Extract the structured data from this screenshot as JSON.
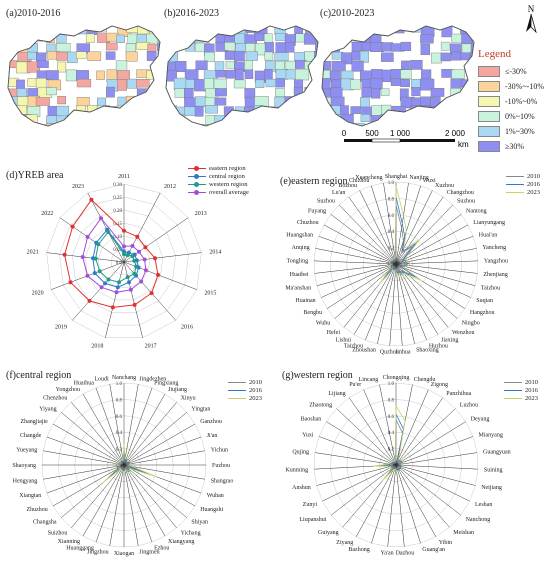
{
  "maps": [
    {
      "label": "(a)2010-2016"
    },
    {
      "label": "(b)2016-2023"
    },
    {
      "label": "(c)2010-2023"
    }
  ],
  "legend": {
    "title": "Legend",
    "items": [
      {
        "label": "≤-30%",
        "color": "#f4a6a0"
      },
      {
        "label": "-30%~-10%",
        "color": "#fcd39a"
      },
      {
        "label": "-10%~0%",
        "color": "#f5f7b0"
      },
      {
        "label": "0%~10%",
        "color": "#c9f3dc"
      },
      {
        "label": "1%~30%",
        "color": "#a9d8f4"
      },
      {
        "label": "≥30%",
        "color": "#8e8ff0"
      }
    ]
  },
  "scale": {
    "ticks": [
      "0",
      "500",
      "1 000",
      "2 000"
    ],
    "unit": "km"
  },
  "north": {
    "label": "N"
  },
  "chart_data": [
    {
      "type": "radar",
      "title": "(d)YREB area",
      "axes": [
        "2011",
        "2012",
        "2013",
        "2014",
        "2015",
        "2016",
        "2017",
        "2018",
        "2019",
        "2020",
        "2021",
        "2022",
        "2023"
      ],
      "rticks": [
        "0.30",
        "0.25",
        "0.20",
        "0.15",
        "0.10",
        "0.05",
        "0.0"
      ],
      "rlim": [
        0,
        0.3
      ],
      "series": [
        {
          "name": "eastern region",
          "color": "#e03030",
          "values": [
            0.12,
            0.11,
            0.1,
            0.12,
            0.14,
            0.16,
            0.17,
            0.18,
            0.2,
            0.22,
            0.23,
            0.24,
            0.27
          ]
        },
        {
          "name": "central region",
          "color": "#2f7ac8",
          "values": [
            0.04,
            0.04,
            0.05,
            0.05,
            0.06,
            0.07,
            0.08,
            0.1,
            0.11,
            0.12,
            0.12,
            0.13,
            0.14
          ]
        },
        {
          "name": "western region",
          "color": "#1e9b8a",
          "values": [
            0.03,
            0.03,
            0.04,
            0.04,
            0.05,
            0.06,
            0.06,
            0.08,
            0.09,
            0.1,
            0.11,
            0.12,
            0.13
          ]
        },
        {
          "name": "overall average",
          "color": "#a050d8",
          "values": [
            0.06,
            0.07,
            0.07,
            0.08,
            0.09,
            0.1,
            0.11,
            0.12,
            0.13,
            0.15,
            0.16,
            0.17,
            0.19
          ]
        }
      ]
    },
    {
      "type": "radar",
      "title": "(e)eastern region",
      "axes": [
        "Shanghai",
        "Nanjing",
        "Wuxi",
        "Xuzhou",
        "Changzhou",
        "Suzhou",
        "Nantong",
        "Lianyungang",
        "Huai'an",
        "Yancheng",
        "Yangzhou",
        "Zhenjiang",
        "Taizhou",
        "Suqian",
        "Hangzhou",
        "Ningbo",
        "Wenzhou",
        "Jiaxing",
        "Huzhou",
        "Shaoxing",
        "Jinhua",
        "Quzhou",
        "Zhoushan",
        "Taizhou",
        "Lishui",
        "Hefei",
        "Wuhu",
        "Bengbu",
        "Huainan",
        "Ma'anshan",
        "Huaibei",
        "Tongling",
        "Anqing",
        "Huangshan",
        "Chuzhou",
        "Fuyang",
        "Suzhou",
        "Lu'an",
        "Bozhou",
        "Chizhou",
        "Xuancheng"
      ],
      "rticks": [
        "1.0",
        "0.8",
        "0.6",
        "0.4",
        "0.2",
        "0.0"
      ],
      "rlim": [
        0,
        1
      ],
      "series": [
        {
          "name": "2010",
          "color": "#888888",
          "values": [
            0.72,
            0.45,
            0.3,
            0.15,
            0.2,
            0.3,
            0.12,
            0.08,
            0.1,
            0.1,
            0.12,
            0.1,
            0.08,
            0.06,
            0.25,
            0.15,
            0.1,
            0.12,
            0.08,
            0.1,
            0.08,
            0.05,
            0.06,
            0.05,
            0.05,
            0.2,
            0.08,
            0.05,
            0.05,
            0.06,
            0.04,
            0.05,
            0.05,
            0.05,
            0.05,
            0.04,
            0.04,
            0.04,
            0.04,
            0.04,
            0.04
          ]
        },
        {
          "name": "2016",
          "color": "#2f7ac8",
          "values": [
            0.82,
            0.5,
            0.35,
            0.18,
            0.22,
            0.35,
            0.15,
            0.1,
            0.12,
            0.12,
            0.15,
            0.12,
            0.1,
            0.07,
            0.3,
            0.18,
            0.12,
            0.14,
            0.1,
            0.12,
            0.1,
            0.06,
            0.07,
            0.06,
            0.06,
            0.25,
            0.1,
            0.06,
            0.06,
            0.07,
            0.05,
            0.06,
            0.06,
            0.06,
            0.06,
            0.05,
            0.05,
            0.05,
            0.05,
            0.05,
            0.05
          ]
        },
        {
          "name": "2023",
          "color": "#c8d070",
          "values": [
            0.95,
            0.6,
            0.42,
            0.22,
            0.26,
            0.42,
            0.18,
            0.12,
            0.15,
            0.14,
            0.18,
            0.15,
            0.12,
            0.09,
            0.38,
            0.22,
            0.15,
            0.17,
            0.12,
            0.15,
            0.12,
            0.08,
            0.09,
            0.08,
            0.08,
            0.32,
            0.12,
            0.08,
            0.08,
            0.09,
            0.06,
            0.08,
            0.08,
            0.08,
            0.08,
            0.07,
            0.07,
            0.07,
            0.07,
            0.07,
            0.07
          ]
        }
      ]
    },
    {
      "type": "radar",
      "title": "(f)central region",
      "axes": [
        "Nanchang",
        "Jingdezhen",
        "Pingxiang",
        "Jiujiang",
        "Xinyu",
        "Yingtan",
        "Ganzhou",
        "Ji'an",
        "Yichun",
        "Fuzhou",
        "Shangrao",
        "Wuhan",
        "Huangshi",
        "Shiyan",
        "Yichang",
        "Xiangyang",
        "Ezhou",
        "Jingmen",
        "Xiaogan",
        "Jingzhou",
        "Huanggang",
        "Xianning",
        "Suizhou",
        "Changsha",
        "Zhuzhou",
        "Xiangtan",
        "Hengyang",
        "Shaoyang",
        "Yueyang",
        "Changde",
        "Zhangjiajie",
        "Yiyang",
        "Chenzhou",
        "Yongzhou",
        "Huaihua",
        "Loudi"
      ],
      "rticks": [
        "1.0",
        "0.8",
        "0.6",
        "0.4",
        "0.2",
        "0.0"
      ],
      "rlim": [
        0,
        1
      ],
      "series": [
        {
          "name": "2010",
          "color": "#888888",
          "values": [
            0.15,
            0.05,
            0.05,
            0.06,
            0.04,
            0.04,
            0.06,
            0.05,
            0.05,
            0.04,
            0.06,
            0.28,
            0.06,
            0.05,
            0.08,
            0.07,
            0.04,
            0.05,
            0.05,
            0.05,
            0.05,
            0.04,
            0.04,
            0.2,
            0.07,
            0.06,
            0.06,
            0.04,
            0.06,
            0.05,
            0.03,
            0.04,
            0.05,
            0.04,
            0.04,
            0.04
          ]
        },
        {
          "name": "2016",
          "color": "#2f7ac8",
          "values": [
            0.2,
            0.06,
            0.06,
            0.08,
            0.05,
            0.05,
            0.08,
            0.06,
            0.06,
            0.05,
            0.08,
            0.35,
            0.07,
            0.06,
            0.1,
            0.09,
            0.05,
            0.06,
            0.06,
            0.06,
            0.06,
            0.05,
            0.05,
            0.26,
            0.09,
            0.08,
            0.08,
            0.05,
            0.08,
            0.06,
            0.04,
            0.05,
            0.06,
            0.05,
            0.05,
            0.05
          ]
        },
        {
          "name": "2023",
          "color": "#c8d070",
          "values": [
            0.26,
            0.08,
            0.08,
            0.1,
            0.06,
            0.06,
            0.1,
            0.08,
            0.08,
            0.06,
            0.1,
            0.42,
            0.09,
            0.08,
            0.13,
            0.12,
            0.06,
            0.08,
            0.08,
            0.08,
            0.08,
            0.06,
            0.06,
            0.33,
            0.11,
            0.1,
            0.1,
            0.06,
            0.1,
            0.08,
            0.05,
            0.06,
            0.08,
            0.06,
            0.06,
            0.06
          ]
        }
      ]
    },
    {
      "type": "radar",
      "title": "(g)western region",
      "axes": [
        "Chongqing",
        "Chengdu",
        "Zigong",
        "Panzhihua",
        "Luzhou",
        "Deyang",
        "Mianyang",
        "Guangyuan",
        "Suining",
        "Neijiang",
        "Leshan",
        "Nanchong",
        "Meishan",
        "Yibin",
        "Guang'an",
        "Dazhou",
        "Ya'an",
        "Bazhong",
        "Ziyang",
        "Guiyang",
        "Liupanshui",
        "Zunyi",
        "Anshun",
        "Kunming",
        "Qujing",
        "Yuxi",
        "Baoshan",
        "Zhaotong",
        "Lijiang",
        "Pu'er",
        "Lincang"
      ],
      "rticks": [
        "1.0",
        "0.8",
        "0.6",
        "0.4",
        "0.2",
        "0.0"
      ],
      "rlim": [
        0,
        1
      ],
      "series": [
        {
          "name": "2010",
          "color": "#888888",
          "values": [
            0.55,
            0.4,
            0.05,
            0.05,
            0.06,
            0.07,
            0.07,
            0.04,
            0.05,
            0.05,
            0.05,
            0.06,
            0.05,
            0.06,
            0.05,
            0.05,
            0.03,
            0.04,
            0.04,
            0.15,
            0.04,
            0.06,
            0.04,
            0.18,
            0.06,
            0.05,
            0.04,
            0.04,
            0.03,
            0.03,
            0.03
          ]
        },
        {
          "name": "2016",
          "color": "#2f7ac8",
          "values": [
            0.62,
            0.45,
            0.06,
            0.06,
            0.07,
            0.08,
            0.08,
            0.05,
            0.06,
            0.06,
            0.06,
            0.07,
            0.06,
            0.07,
            0.06,
            0.06,
            0.04,
            0.05,
            0.05,
            0.19,
            0.05,
            0.07,
            0.05,
            0.22,
            0.07,
            0.06,
            0.05,
            0.05,
            0.04,
            0.04,
            0.04
          ]
        },
        {
          "name": "2023",
          "color": "#c8d070",
          "values": [
            0.72,
            0.55,
            0.08,
            0.08,
            0.09,
            0.1,
            0.1,
            0.06,
            0.08,
            0.08,
            0.08,
            0.09,
            0.08,
            0.09,
            0.08,
            0.08,
            0.05,
            0.06,
            0.06,
            0.25,
            0.06,
            0.09,
            0.06,
            0.28,
            0.09,
            0.08,
            0.06,
            0.06,
            0.05,
            0.05,
            0.05
          ]
        }
      ]
    }
  ]
}
